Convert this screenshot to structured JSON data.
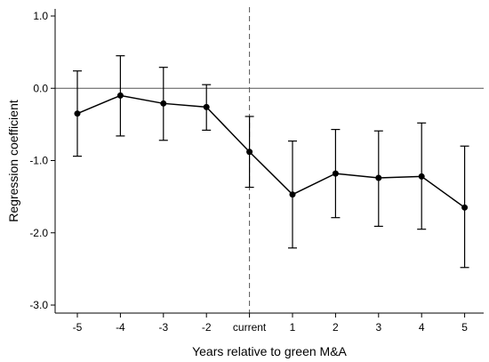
{
  "chart_data": {
    "type": "line",
    "xlabel": "Years relative to green M&A",
    "ylabel": "Regression coefficient",
    "categories": [
      "-5",
      "-4",
      "-3",
      "-2",
      "current",
      "1",
      "2",
      "3",
      "4",
      "5"
    ],
    "series": [
      {
        "values": [
          -0.35,
          -0.1,
          -0.21,
          -0.26,
          -0.88,
          -1.47,
          -1.18,
          -1.24,
          -1.22,
          -1.65
        ],
        "ci_low": [
          -0.94,
          -0.66,
          -0.72,
          -0.58,
          -1.37,
          -2.21,
          -1.79,
          -1.91,
          -1.95,
          -2.48
        ],
        "ci_high": [
          0.24,
          0.45,
          0.29,
          0.05,
          -0.39,
          -0.73,
          -0.57,
          -0.59,
          -0.48,
          -0.8
        ]
      }
    ],
    "ylim": [
      -3.0,
      1.0
    ],
    "yticks": [
      "1.0",
      "0.0",
      "-1.0",
      "-2.0",
      "-3.0"
    ],
    "ytick_values": [
      1.0,
      0.0,
      -1.0,
      -2.0,
      -3.0
    ],
    "reference_lines": {
      "horizontal_at": 0.0,
      "vertical_at_category": "current"
    },
    "colors": {
      "series": "#000000",
      "reference": "#555555"
    }
  }
}
